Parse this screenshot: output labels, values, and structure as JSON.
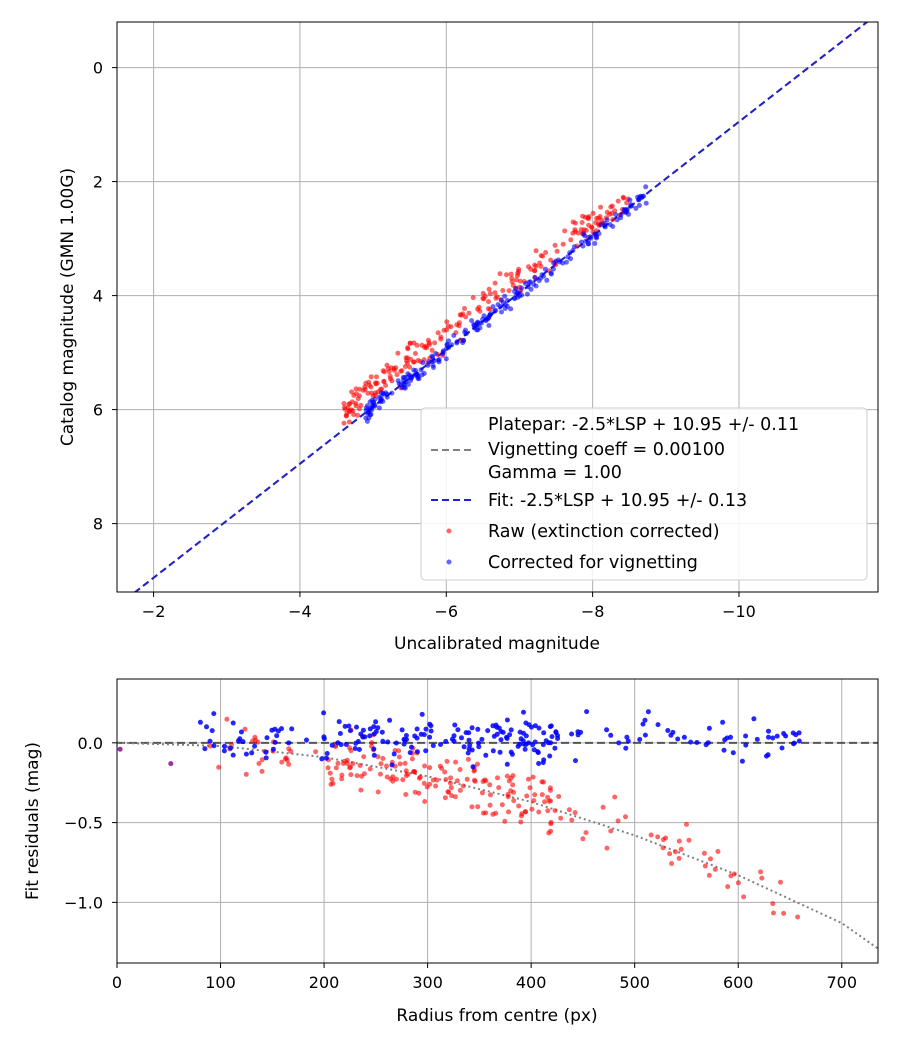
{
  "chart_data": [
    {
      "type": "scatter",
      "xlabel": "Uncalibrated magnitude",
      "ylabel": "Catalog magnitude (GMN 1.00G)",
      "xlim": [
        -1.5,
        -11.9
      ],
      "ylim": [
        9.2,
        -0.8
      ],
      "xticks": [
        -2,
        -4,
        -6,
        -8,
        -10
      ],
      "yticks": [
        0,
        2,
        4,
        6,
        8
      ],
      "xtick_labels": [
        "−2",
        "−4",
        "−6",
        "−8",
        "−10"
      ],
      "ytick_labels": [
        "0",
        "2",
        "4",
        "6",
        "8"
      ],
      "grid": true,
      "legend_position": "lower-right",
      "legend": [
        {
          "label": "Platepar: -2.5*LSP + 10.95 +/- 0.11",
          "style": "none"
        },
        {
          "label": "Vignetting coeff = 0.00100",
          "style": "dashed-gray"
        },
        {
          "label": "Gamma = 1.00",
          "style": "none"
        },
        {
          "label": "Fit: -2.5*LSP + 10.95 +/- 0.13",
          "style": "dashed-blue"
        },
        {
          "label": "Raw (extinction corrected)",
          "style": "red-dot"
        },
        {
          "label": "Corrected for vignetting",
          "style": "blue-dot"
        }
      ],
      "series": [
        {
          "name": "Platepar",
          "kind": "line",
          "color": "#808080",
          "dash": "7,4",
          "slope": 1.0,
          "intercept": 10.95
        },
        {
          "name": "Fit",
          "kind": "line",
          "color": "#2222cc",
          "dash": "7,4",
          "slope": 1.0,
          "intercept": 10.95
        },
        {
          "name": "Raw (extinction corrected)",
          "kind": "scatter",
          "color": "#ff0000",
          "opacity": 0.6,
          "model": {
            "x_range": [
              -4.6,
              -8.5
            ],
            "offset_mean": -0.35,
            "offset_spread": 0.25,
            "count": 230
          }
        },
        {
          "name": "Corrected for vignetting",
          "kind": "scatter",
          "color": "#0000ff",
          "opacity": 0.6,
          "model": {
            "x_range": [
              -4.9,
              -8.8
            ],
            "offset_mean": 0.0,
            "offset_spread": 0.12,
            "count": 230
          }
        }
      ]
    },
    {
      "type": "scatter",
      "xlabel": "Radius from centre (px)",
      "ylabel": "Fit residuals (mag)",
      "xlim": [
        0,
        735
      ],
      "ylim": [
        -1.38,
        0.4
      ],
      "xticks": [
        0,
        100,
        200,
        300,
        400,
        500,
        600,
        700
      ],
      "yticks": [
        0.0,
        -0.5,
        -1.0
      ],
      "xtick_labels": [
        "0",
        "100",
        "200",
        "300",
        "400",
        "500",
        "600",
        "700"
      ],
      "ytick_labels": [
        "0.0",
        "−0.5",
        "−1.0"
      ],
      "grid": true,
      "series": [
        {
          "name": "Zero line",
          "kind": "hline",
          "y": 0.0,
          "color": "#555555",
          "dash": "8,4"
        },
        {
          "name": "Vignetting model",
          "kind": "curve",
          "color": "#808080",
          "dash": "2,3",
          "x": [
            0,
            100,
            200,
            300,
            400,
            500,
            600,
            700,
            735
          ],
          "y": [
            0.0,
            -0.02,
            -0.09,
            -0.21,
            -0.37,
            -0.58,
            -0.83,
            -1.13,
            -1.29
          ]
        },
        {
          "name": "Raw residuals",
          "kind": "scatter",
          "color": "#ff0000",
          "opacity": 0.6,
          "model": {
            "x_range": [
              0,
              660
            ],
            "count": 230,
            "spread": 0.15
          }
        },
        {
          "name": "Corrected residuals",
          "kind": "scatter",
          "color": "#0000ff",
          "opacity": 0.85,
          "model": {
            "x_range": [
              0,
              660
            ],
            "count": 230,
            "spread": 0.12
          }
        }
      ]
    }
  ]
}
